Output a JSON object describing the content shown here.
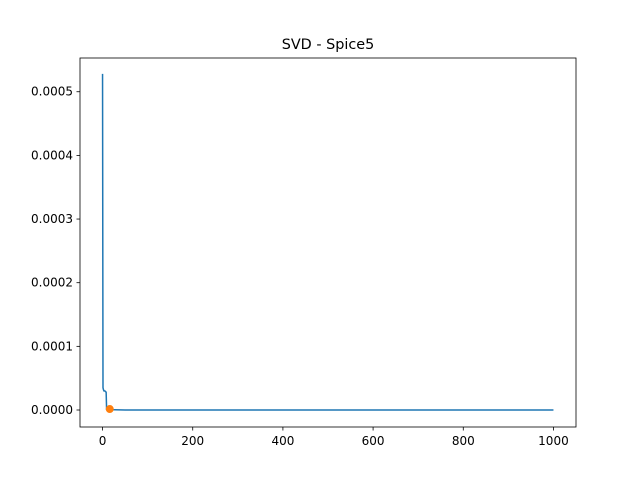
{
  "chart_data": {
    "type": "line",
    "title": "SVD - Spice5",
    "x": [
      0,
      1,
      2,
      3,
      5,
      8,
      9,
      15,
      50,
      1000
    ],
    "series": [
      {
        "color": "#1f77b4",
        "values": [
          0.000528,
          3.5e-05,
          3.2e-05,
          3e-05,
          3e-05,
          2.8e-05,
          1e-06,
          5e-07,
          1e-07,
          0
        ]
      }
    ],
    "marker": {
      "x": 16,
      "y": 1.5e-06,
      "color": "#ff7f0e"
    },
    "xlim": [
      -50,
      1050
    ],
    "xticks": [
      0,
      200,
      400,
      600,
      800,
      1000
    ],
    "ylim": [
      -2.67e-05,
      0.000553
    ],
    "yticks": [
      {
        "value": 0,
        "label": "0.0000"
      },
      {
        "value": 0.0001,
        "label": "0.0001"
      },
      {
        "value": 0.0002,
        "label": "0.0002"
      },
      {
        "value": 0.0003,
        "label": "0.0003"
      },
      {
        "value": 0.0004,
        "label": "0.0004"
      },
      {
        "value": 0.0005,
        "label": "0.0005"
      }
    ],
    "grid": false
  }
}
